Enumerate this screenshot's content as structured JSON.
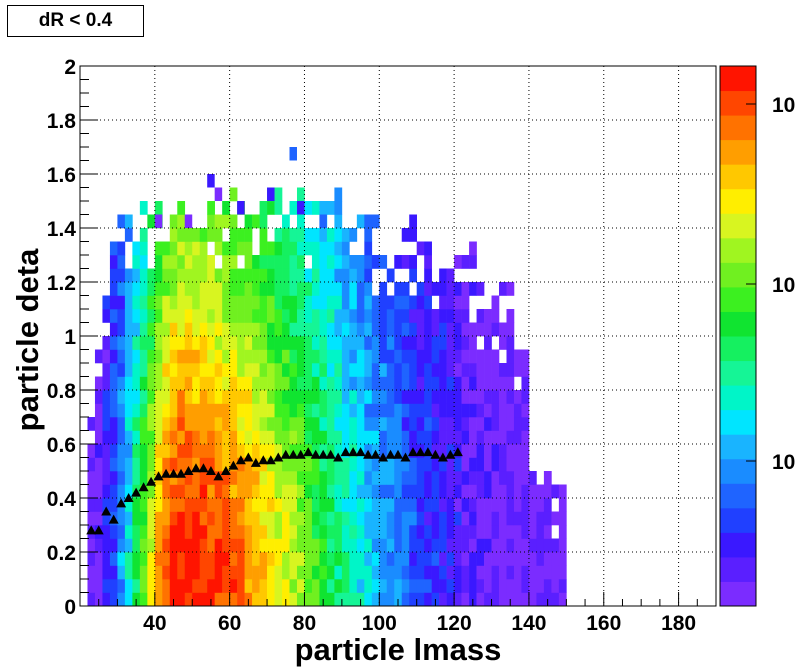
{
  "chart_data": {
    "type": "heatmap",
    "title": "dR < 0.4",
    "xlabel": "particle lmass",
    "ylabel": "particle deta",
    "xlim": [
      20,
      190
    ],
    "ylim": [
      0,
      2
    ],
    "xticks": [
      40,
      60,
      80,
      100,
      120,
      140,
      160,
      180
    ],
    "yticks": [
      0,
      0.2,
      0.4,
      0.6,
      0.8,
      1,
      1.2,
      1.4,
      1.6,
      1.8,
      2
    ],
    "grid": true,
    "colorbar": {
      "scale": "log",
      "labels": [
        "10",
        "10",
        "10"
      ],
      "palette": [
        "#7b2cff",
        "#5a1fff",
        "#3a18ff",
        "#2040ff",
        "#1f64ff",
        "#1a8cff",
        "#19b4ff",
        "#00e5ff",
        "#00f5c8",
        "#15f596",
        "#15f060",
        "#10e430",
        "#3cf020",
        "#70f020",
        "#a0f520",
        "#d8f520",
        "#ffee00",
        "#ffc800",
        "#ff9e00",
        "#ff7200",
        "#ff4600",
        "#ff1400"
      ]
    },
    "profile": {
      "marker": "triangle",
      "x": [
        23,
        25,
        27,
        29,
        31,
        33,
        35,
        37,
        39,
        41,
        43,
        45,
        47,
        49,
        51,
        53,
        55,
        57,
        59,
        61,
        63,
        65,
        67,
        69,
        71,
        73,
        75,
        77,
        79,
        81,
        83,
        85,
        87,
        89,
        91,
        93,
        95,
        97,
        99,
        101,
        103,
        105,
        107,
        109,
        111,
        113,
        115,
        117,
        119,
        121
      ],
      "y": [
        0.28,
        0.28,
        0.35,
        0.32,
        0.38,
        0.4,
        0.42,
        0.44,
        0.46,
        0.48,
        0.49,
        0.49,
        0.49,
        0.5,
        0.51,
        0.51,
        0.5,
        0.48,
        0.5,
        0.52,
        0.54,
        0.55,
        0.53,
        0.54,
        0.54,
        0.55,
        0.56,
        0.56,
        0.56,
        0.57,
        0.56,
        0.56,
        0.56,
        0.55,
        0.57,
        0.57,
        0.57,
        0.56,
        0.56,
        0.55,
        0.56,
        0.56,
        0.55,
        0.57,
        0.57,
        0.57,
        0.56,
        0.55,
        0.56,
        0.57
      ]
    }
  }
}
